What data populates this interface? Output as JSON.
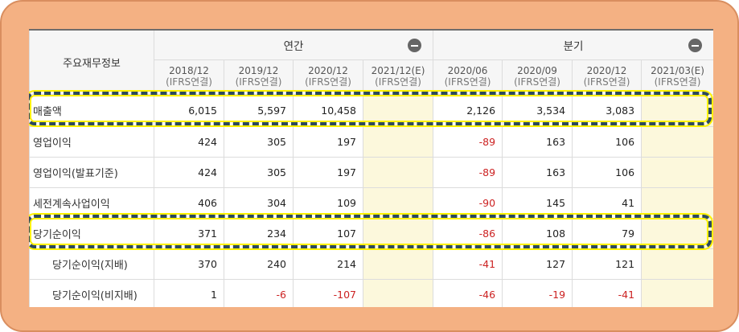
{
  "table": {
    "corner_label": "주요재무정보",
    "groups": [
      {
        "label": "연간"
      },
      {
        "label": "분기"
      }
    ],
    "periods": [
      {
        "date": "2018/12",
        "basis": "(IFRS연결)"
      },
      {
        "date": "2019/12",
        "basis": "(IFRS연결)"
      },
      {
        "date": "2020/12",
        "basis": "(IFRS연결)"
      },
      {
        "date": "2021/12(E)",
        "basis": "(IFRS연결)"
      },
      {
        "date": "2020/06",
        "basis": "(IFRS연결)"
      },
      {
        "date": "2020/09",
        "basis": "(IFRS연결)"
      },
      {
        "date": "2020/12",
        "basis": "(IFRS연결)"
      },
      {
        "date": "2021/03(E)",
        "basis": "(IFRS연결)"
      }
    ],
    "rows": [
      {
        "label": "매출액",
        "values": [
          "6,015",
          "5,597",
          "10,458",
          "",
          "2,126",
          "3,534",
          "3,083",
          ""
        ]
      },
      {
        "label": "영업이익",
        "values": [
          "424",
          "305",
          "197",
          "",
          "-89",
          "163",
          "106",
          ""
        ]
      },
      {
        "label": "영업이익(발표기준)",
        "values": [
          "424",
          "305",
          "197",
          "",
          "-89",
          "163",
          "106",
          ""
        ]
      },
      {
        "label": "세전계속사업이익",
        "values": [
          "406",
          "304",
          "109",
          "",
          "-90",
          "145",
          "41",
          ""
        ]
      },
      {
        "label": "당기순이익",
        "values": [
          "371",
          "234",
          "107",
          "",
          "-86",
          "108",
          "79",
          ""
        ]
      },
      {
        "label": "당기순이익(지배)",
        "values": [
          "370",
          "240",
          "214",
          "",
          "-41",
          "127",
          "121",
          ""
        ]
      },
      {
        "label": "당기순이익(비지배)",
        "values": [
          "1",
          "-6",
          "-107",
          "",
          "-46",
          "-19",
          "-41",
          ""
        ]
      }
    ]
  },
  "colors": {
    "frame": "#f4b183",
    "highlight_dash": "#2c4a5c",
    "highlight_glow": "#fff200",
    "estimate_fill": "#fcf8dc",
    "negative": "#cc2222"
  },
  "icons": {
    "collapse": "minus-circle-icon"
  }
}
